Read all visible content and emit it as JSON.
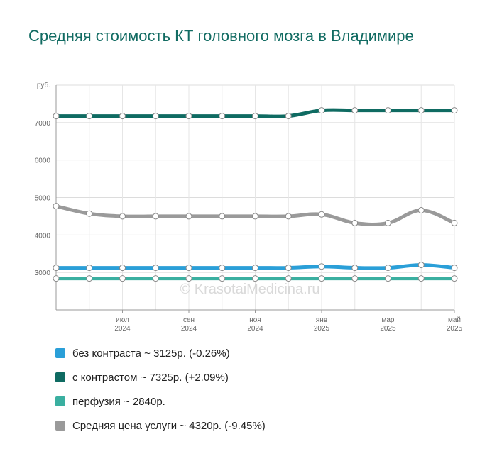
{
  "chart_data": {
    "type": "line",
    "title": "Средняя стоимость КТ головного мозга в Владимире",
    "y_unit": "руб.",
    "ylim": [
      2000,
      8000
    ],
    "y_ticks": [
      3000,
      4000,
      5000,
      6000,
      7000
    ],
    "y_tick_labels": [
      "3000",
      "4000",
      "5000",
      "6000",
      "7000"
    ],
    "x": [
      "2024-05",
      "2024-06",
      "2024-07",
      "2024-08",
      "2024-09",
      "2024-10",
      "2024-11",
      "2024-12",
      "2025-01",
      "2025-02",
      "2025-03",
      "2025-04",
      "2025-05"
    ],
    "x_tick_labels": [
      {
        "x": "2024-07",
        "month": "июл",
        "year": "2024"
      },
      {
        "x": "2024-09",
        "month": "сен",
        "year": "2024"
      },
      {
        "x": "2024-11",
        "month": "ноя",
        "year": "2024"
      },
      {
        "x": "2025-01",
        "month": "янв",
        "year": "2025"
      },
      {
        "x": "2025-03",
        "month": "мар",
        "year": "2025"
      },
      {
        "x": "2025-05",
        "month": "май",
        "year": "2025"
      }
    ],
    "series": [
      {
        "name": "без контраста",
        "color": "#2a9fd8",
        "values": [
          3125,
          3125,
          3125,
          3125,
          3125,
          3125,
          3125,
          3125,
          3160,
          3125,
          3125,
          3200,
          3125
        ]
      },
      {
        "name": "с контрастом",
        "color": "#0f6b62",
        "values": [
          7175,
          7175,
          7175,
          7175,
          7175,
          7175,
          7175,
          7175,
          7325,
          7325,
          7325,
          7325,
          7325
        ]
      },
      {
        "name": "перфузия",
        "color": "#3aafa0",
        "values": [
          2840,
          2840,
          2840,
          2840,
          2840,
          2840,
          2840,
          2840,
          2840,
          2840,
          2840,
          2840,
          2840
        ]
      },
      {
        "name": "Средняя цена услуги",
        "color": "#9a9a9a",
        "values": [
          4770,
          4570,
          4500,
          4500,
          4500,
          4500,
          4500,
          4500,
          4550,
          4320,
          4320,
          4660,
          4320
        ]
      }
    ],
    "grid": true,
    "legend_position": "bottom-left",
    "watermark": "© KrasotaiMedicina.ru"
  },
  "legend": [
    {
      "label": "без контраста ~ 3125р. (-0.26%)",
      "color": "#2a9fd8"
    },
    {
      "label": "с контрастом ~ 7325р. (+2.09%)",
      "color": "#0f6b62"
    },
    {
      "label": "перфузия ~ 2840р.",
      "color": "#3aafa0"
    },
    {
      "label": "Средняя цена услуги ~ 4320р. (-9.45%)",
      "color": "#9a9a9a"
    }
  ]
}
